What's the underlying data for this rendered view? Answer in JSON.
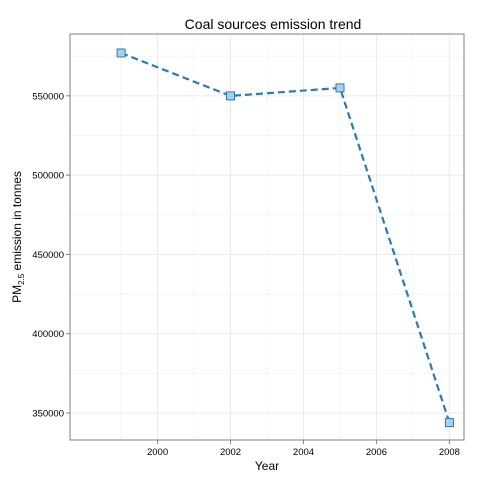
{
  "chart_data": {
    "type": "line",
    "title": "Coal sources emission trend",
    "xlabel": "Year",
    "ylabel_main": "PM",
    "ylabel_sub": "2.5",
    "ylabel_rest": " emission in tonnes",
    "x": [
      1999,
      2002,
      2005,
      2008
    ],
    "values": [
      577000,
      550000,
      555000,
      344000
    ],
    "xlim": [
      1997.6,
      2008.4
    ],
    "ylim": [
      333000,
      589000
    ],
    "x_ticks": [
      2000,
      2002,
      2004,
      2006,
      2008
    ],
    "y_ticks": [
      350000,
      400000,
      450000,
      500000,
      550000
    ],
    "line_style": "dashed",
    "marker": "square",
    "grid": true,
    "colors": {
      "line": "#2a7ab8",
      "marker_fill": "#a8d1e7"
    }
  }
}
